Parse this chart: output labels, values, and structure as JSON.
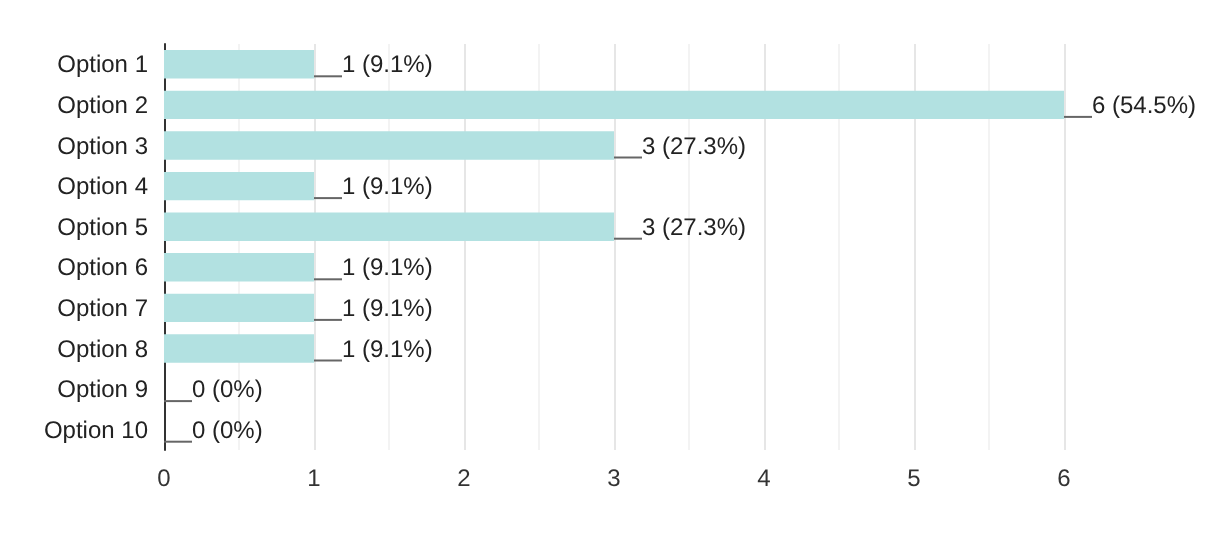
{
  "chart_data": {
    "type": "bar",
    "orientation": "horizontal",
    "categories": [
      "Option 1",
      "Option 2",
      "Option 3",
      "Option 4",
      "Option 5",
      "Option 6",
      "Option 7",
      "Option 8",
      "Option 9",
      "Option 10"
    ],
    "values": [
      1,
      6,
      3,
      1,
      3,
      1,
      1,
      1,
      0,
      0
    ],
    "value_labels": [
      "1 (9.1%)",
      "6 (54.5%)",
      "3 (27.3%)",
      "1 (9.1%)",
      "3 (27.3%)",
      "1 (9.1%)",
      "1 (9.1%)",
      "1 (9.1%)",
      "0 (0%)",
      "0 (0%)"
    ],
    "color": "#b2e1e1",
    "xlim": [
      0,
      6
    ],
    "xticks": [
      0,
      1,
      2,
      3,
      4,
      5,
      6
    ],
    "grid": "x"
  }
}
